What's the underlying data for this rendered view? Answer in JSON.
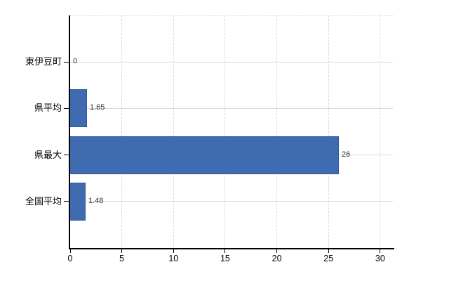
{
  "chart_data": {
    "type": "bar",
    "orientation": "horizontal",
    "title": "",
    "xlabel": "",
    "ylabel": "",
    "categories": [
      "東伊豆町",
      "県平均",
      "県最大",
      "全国平均"
    ],
    "values": [
      0,
      1.65,
      26,
      1.48
    ],
    "value_labels": [
      "0",
      "1.65",
      "26",
      "1.48"
    ],
    "x_ticks": [
      0,
      5,
      10,
      15,
      20,
      25,
      30
    ],
    "x_tick_labels": [
      "0",
      "5",
      "10",
      "15",
      "20",
      "25",
      "30"
    ],
    "xlim": [
      0,
      31.23
    ],
    "grid": true,
    "legend": false,
    "colors": {
      "bar_fill": "#3f6bb0",
      "bar_border": "#2e5894",
      "gridline": "#d9d9d9",
      "axis": "#000000",
      "tick_text": "#000000",
      "value_text": "#333333",
      "background": "#ffffff"
    }
  }
}
